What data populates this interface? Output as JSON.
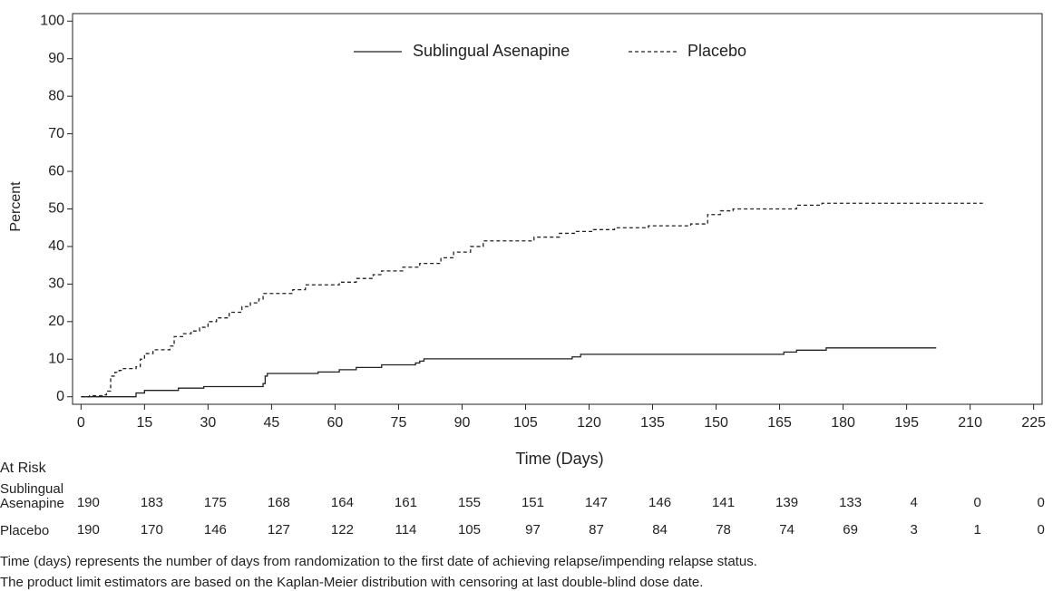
{
  "chart_data": {
    "type": "step-line",
    "xlabel": "Time (Days)",
    "ylabel": "Percent",
    "xlim": [
      -2,
      227
    ],
    "ylim": [
      -2,
      102
    ],
    "xticks": [
      0,
      15,
      30,
      45,
      60,
      75,
      90,
      105,
      120,
      135,
      150,
      165,
      180,
      195,
      210,
      225
    ],
    "yticks": [
      0,
      10,
      20,
      30,
      40,
      50,
      60,
      70,
      80,
      90,
      100
    ],
    "legend": "upper center",
    "series": [
      {
        "name": "Sublingual Asenapine",
        "color": "#222222",
        "dash": "solid",
        "x": [
          0,
          12,
          13,
          15,
          23,
          29,
          43,
          43.5,
          44,
          56,
          61,
          65,
          71,
          79,
          80,
          81,
          116,
          118,
          166,
          169,
          176,
          202
        ],
        "values": [
          0,
          0,
          1,
          1.7,
          2.3,
          2.7,
          3.5,
          5.5,
          6.2,
          6.6,
          7.2,
          7.8,
          8.5,
          9,
          9.5,
          10.1,
          10.6,
          11.3,
          11.9,
          12.4,
          13,
          13
        ]
      },
      {
        "name": "Placebo",
        "color": "#222222",
        "dash": "dashed",
        "x": [
          0,
          2,
          5,
          6,
          7,
          8,
          9,
          10,
          13,
          14,
          15,
          17,
          21,
          22,
          24,
          26,
          28,
          30,
          32,
          35,
          38,
          40,
          42,
          43,
          50,
          53,
          61,
          65,
          69,
          71,
          76,
          80,
          85,
          88,
          92,
          95,
          107,
          113,
          117,
          121,
          126,
          134,
          144,
          148,
          151,
          154,
          169,
          175,
          213
        ],
        "values": [
          0,
          0.3,
          0.5,
          1.5,
          5.5,
          6.5,
          7,
          7.5,
          8,
          10,
          11.5,
          12.5,
          13.5,
          16,
          16.8,
          17.5,
          18.5,
          20,
          21,
          22.5,
          24,
          25,
          26,
          27.5,
          28.5,
          29.8,
          30.5,
          31.5,
          32.5,
          33.5,
          34.5,
          35.5,
          37,
          38.5,
          40,
          41.5,
          42.5,
          43.5,
          44,
          44.5,
          45,
          45.5,
          46,
          48.5,
          49.5,
          50,
          51,
          51.5,
          51.5
        ]
      }
    ],
    "at_risk": {
      "title": "At Risk",
      "rows": [
        {
          "name": "Sublingual Asenapine",
          "values": [
            190,
            183,
            175,
            168,
            164,
            161,
            155,
            151,
            147,
            146,
            141,
            139,
            133,
            4,
            0,
            0
          ]
        },
        {
          "name": "Placebo",
          "values": [
            190,
            170,
            146,
            127,
            122,
            114,
            105,
            97,
            87,
            84,
            78,
            74,
            69,
            3,
            1,
            0
          ]
        }
      ]
    },
    "notes": [
      "Time (days) represents the number of days from randomization to the first date of achieving relapse/impending relapse status.",
      "The product limit estimators are based on the Kaplan-Meier distribution with censoring at last double-blind dose date."
    ]
  }
}
